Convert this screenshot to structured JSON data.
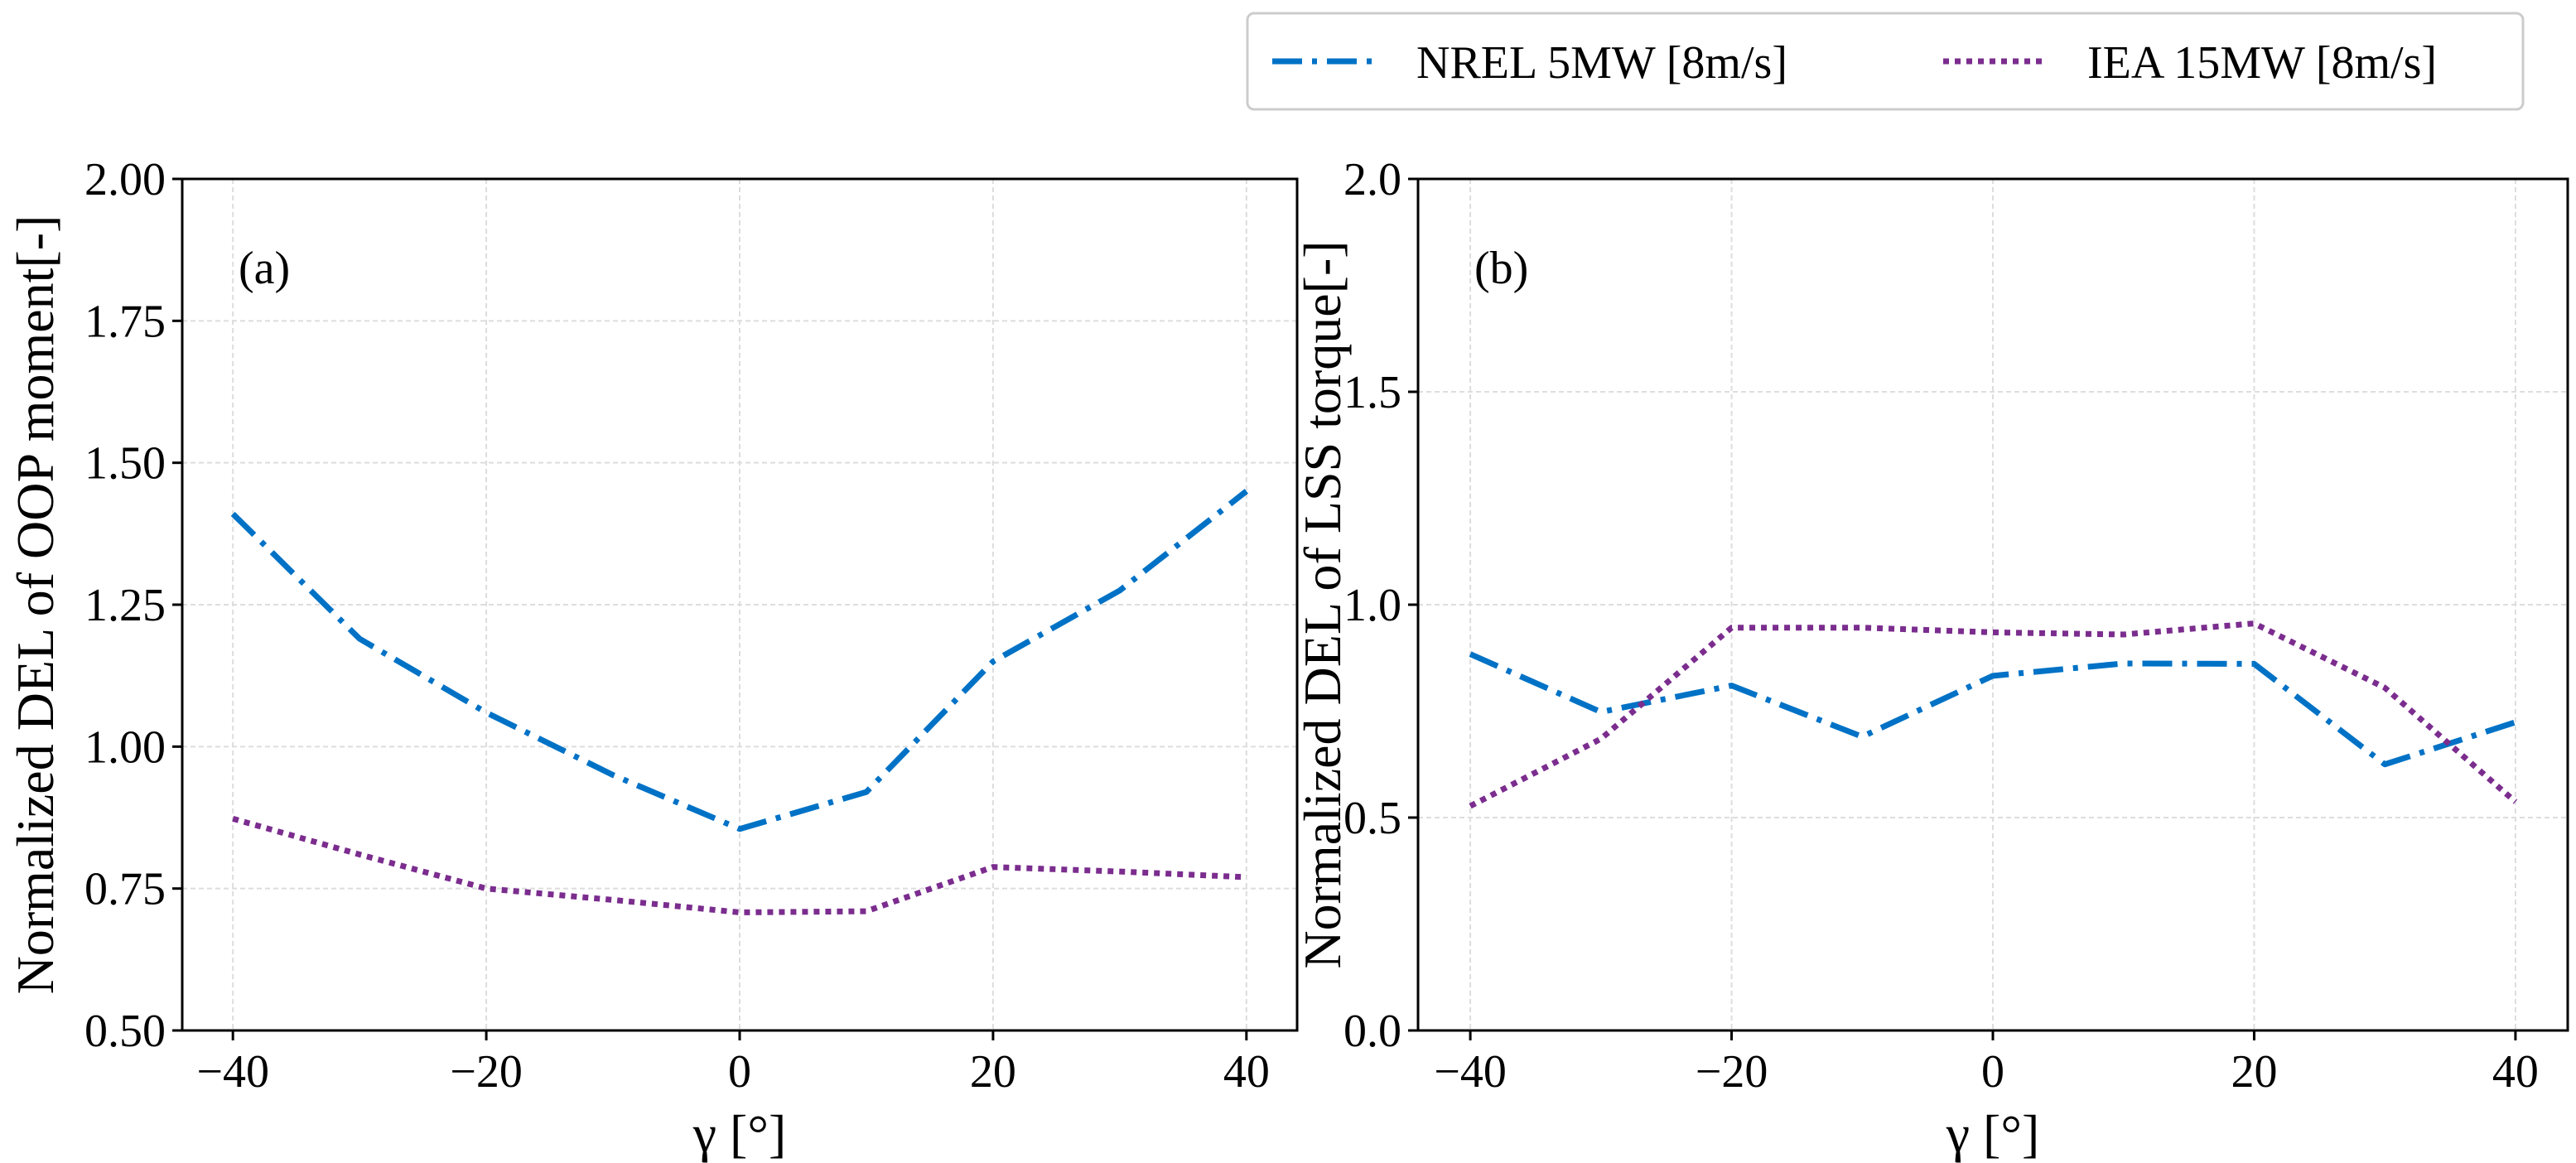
{
  "legend": {
    "entries": [
      {
        "label": "NREL 5MW [8m/s]",
        "color": "#0072C6",
        "style": "dashdot"
      },
      {
        "label": "IEA 15MW [8m/s]",
        "color": "#7B2D8E",
        "style": "dotted"
      }
    ],
    "placement": "top-right"
  },
  "chart_data": [
    {
      "type": "line",
      "panel_label": "(a)",
      "xlabel": "γ [°]",
      "ylabel": "Normalized DEL of OOP moment[-]",
      "xlim": [
        -44,
        44
      ],
      "ylim": [
        0.5,
        2.0
      ],
      "xticks": [
        -40,
        -20,
        0,
        20,
        40
      ],
      "xtick_labels": [
        "−40",
        "−20",
        "0",
        "20",
        "40"
      ],
      "yticks": [
        0.5,
        0.75,
        1.0,
        1.25,
        1.5,
        1.75,
        2.0
      ],
      "ytick_labels": [
        "0.50",
        "0.75",
        "1.00",
        "1.25",
        "1.50",
        "1.75",
        "2.00"
      ],
      "grid": true,
      "x": [
        -40,
        -30,
        -20,
        -10,
        0,
        10,
        20,
        30,
        40
      ],
      "series": [
        {
          "name": "NREL 5MW [8m/s]",
          "values": [
            1.41,
            1.19,
            1.06,
            0.95,
            0.855,
            0.92,
            1.15,
            1.275,
            1.45
          ]
        },
        {
          "name": "IEA 15MW [8m/s]",
          "values": [
            0.873,
            0.81,
            0.75,
            0.73,
            0.708,
            0.71,
            0.788,
            0.78,
            0.77
          ]
        }
      ]
    },
    {
      "type": "line",
      "panel_label": "(b)",
      "xlabel": "γ [°]",
      "ylabel": "Normalized DEL of LSS torque[-]",
      "xlim": [
        -44,
        44
      ],
      "ylim": [
        0.0,
        2.0
      ],
      "xticks": [
        -40,
        -20,
        0,
        20,
        40
      ],
      "xtick_labels": [
        "−40",
        "−20",
        "0",
        "20",
        "40"
      ],
      "yticks": [
        0.0,
        0.5,
        1.0,
        1.5,
        2.0
      ],
      "ytick_labels": [
        "0.0",
        "0.5",
        "1.0",
        "1.5",
        "2.0"
      ],
      "grid": true,
      "x": [
        -40,
        -30,
        -20,
        -10,
        0,
        10,
        20,
        30,
        40
      ],
      "series": [
        {
          "name": "NREL 5MW [8m/s]",
          "values": [
            0.884,
            0.748,
            0.81,
            0.69,
            0.833,
            0.862,
            0.861,
            0.625,
            0.724
          ]
        },
        {
          "name": "IEA 15MW [8m/s]",
          "values": [
            0.527,
            0.685,
            0.946,
            0.946,
            0.935,
            0.93,
            0.956,
            0.805,
            0.537
          ]
        }
      ]
    }
  ]
}
